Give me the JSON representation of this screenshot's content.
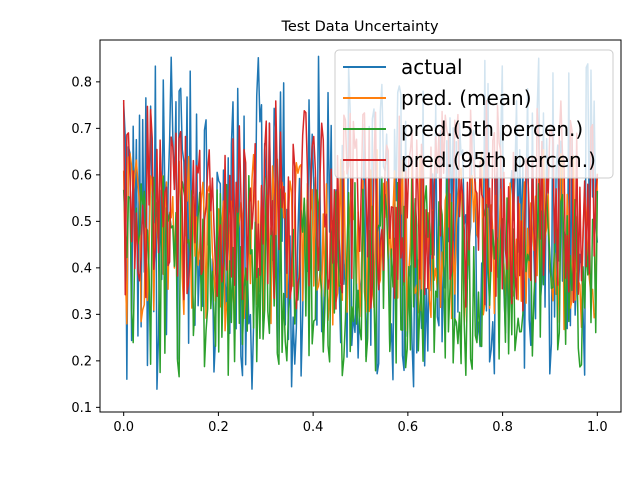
{
  "chart_data": {
    "type": "line",
    "title": "Test Data Uncertainty",
    "xlabel": "",
    "ylabel": "",
    "xlim": [
      -0.05,
      1.05
    ],
    "ylim": [
      0.09,
      0.89
    ],
    "xticks": [
      0.0,
      0.2,
      0.4,
      0.6,
      0.8,
      1.0
    ],
    "xtick_labels": [
      "0.0",
      "0.2",
      "0.4",
      "0.6",
      "0.8",
      "1.0"
    ],
    "yticks": [
      0.1,
      0.2,
      0.3,
      0.4,
      0.5,
      0.6,
      0.7,
      0.8
    ],
    "ytick_labels": [
      "0.1",
      "0.2",
      "0.3",
      "0.4",
      "0.5",
      "0.6",
      "0.7",
      "0.8"
    ],
    "grid": false,
    "legend_position": "top-right",
    "n_points": 300,
    "series": [
      {
        "name": "actual",
        "color": "#1f77b4",
        "seed": 11,
        "low": 0.13,
        "high": 0.86
      },
      {
        "name": "pred. (mean)",
        "color": "#ff7f0e",
        "seed": 23,
        "low": 0.26,
        "high": 0.66
      },
      {
        "name": "pred.(5th percen.)",
        "color": "#2ca02c",
        "seed": 37,
        "low": 0.16,
        "high": 0.6
      },
      {
        "name": "pred.(95th percen.)",
        "color": "#d62728",
        "seed": 51,
        "low": 0.3,
        "high": 0.77
      }
    ]
  }
}
